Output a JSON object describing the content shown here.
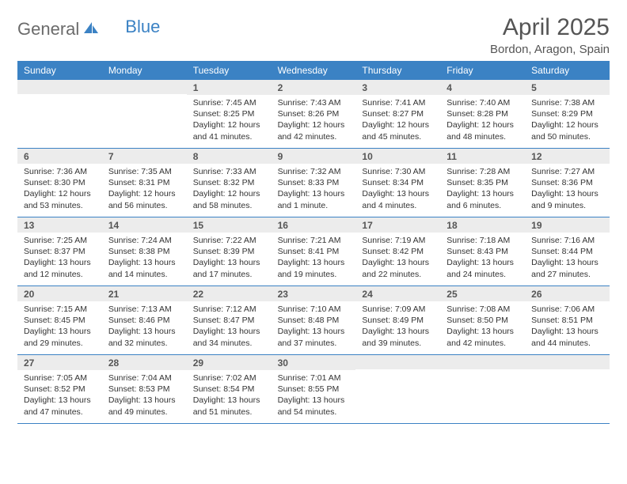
{
  "brand": {
    "part1": "General",
    "part2": "Blue"
  },
  "title": "April 2025",
  "location": "Bordon, Aragon, Spain",
  "colors": {
    "header_bg": "#3b82c4",
    "header_text": "#ffffff",
    "daynum_bg": "#ececec",
    "text": "#333333",
    "brand_gray": "#6b6b6b",
    "brand_blue": "#3b82c4",
    "page_bg": "#ffffff"
  },
  "typography": {
    "title_fontsize": 30,
    "location_fontsize": 15,
    "weekday_fontsize": 12,
    "daynum_fontsize": 12,
    "body_fontsize": 10.5
  },
  "weekdays": [
    "Sunday",
    "Monday",
    "Tuesday",
    "Wednesday",
    "Thursday",
    "Friday",
    "Saturday"
  ],
  "weeks": [
    [
      null,
      null,
      {
        "n": "1",
        "sr": "7:45 AM",
        "ss": "8:25 PM",
        "dl": "12 hours and 41 minutes."
      },
      {
        "n": "2",
        "sr": "7:43 AM",
        "ss": "8:26 PM",
        "dl": "12 hours and 42 minutes."
      },
      {
        "n": "3",
        "sr": "7:41 AM",
        "ss": "8:27 PM",
        "dl": "12 hours and 45 minutes."
      },
      {
        "n": "4",
        "sr": "7:40 AM",
        "ss": "8:28 PM",
        "dl": "12 hours and 48 minutes."
      },
      {
        "n": "5",
        "sr": "7:38 AM",
        "ss": "8:29 PM",
        "dl": "12 hours and 50 minutes."
      }
    ],
    [
      {
        "n": "6",
        "sr": "7:36 AM",
        "ss": "8:30 PM",
        "dl": "12 hours and 53 minutes."
      },
      {
        "n": "7",
        "sr": "7:35 AM",
        "ss": "8:31 PM",
        "dl": "12 hours and 56 minutes."
      },
      {
        "n": "8",
        "sr": "7:33 AM",
        "ss": "8:32 PM",
        "dl": "12 hours and 58 minutes."
      },
      {
        "n": "9",
        "sr": "7:32 AM",
        "ss": "8:33 PM",
        "dl": "13 hours and 1 minute."
      },
      {
        "n": "10",
        "sr": "7:30 AM",
        "ss": "8:34 PM",
        "dl": "13 hours and 4 minutes."
      },
      {
        "n": "11",
        "sr": "7:28 AM",
        "ss": "8:35 PM",
        "dl": "13 hours and 6 minutes."
      },
      {
        "n": "12",
        "sr": "7:27 AM",
        "ss": "8:36 PM",
        "dl": "13 hours and 9 minutes."
      }
    ],
    [
      {
        "n": "13",
        "sr": "7:25 AM",
        "ss": "8:37 PM",
        "dl": "13 hours and 12 minutes."
      },
      {
        "n": "14",
        "sr": "7:24 AM",
        "ss": "8:38 PM",
        "dl": "13 hours and 14 minutes."
      },
      {
        "n": "15",
        "sr": "7:22 AM",
        "ss": "8:39 PM",
        "dl": "13 hours and 17 minutes."
      },
      {
        "n": "16",
        "sr": "7:21 AM",
        "ss": "8:41 PM",
        "dl": "13 hours and 19 minutes."
      },
      {
        "n": "17",
        "sr": "7:19 AM",
        "ss": "8:42 PM",
        "dl": "13 hours and 22 minutes."
      },
      {
        "n": "18",
        "sr": "7:18 AM",
        "ss": "8:43 PM",
        "dl": "13 hours and 24 minutes."
      },
      {
        "n": "19",
        "sr": "7:16 AM",
        "ss": "8:44 PM",
        "dl": "13 hours and 27 minutes."
      }
    ],
    [
      {
        "n": "20",
        "sr": "7:15 AM",
        "ss": "8:45 PM",
        "dl": "13 hours and 29 minutes."
      },
      {
        "n": "21",
        "sr": "7:13 AM",
        "ss": "8:46 PM",
        "dl": "13 hours and 32 minutes."
      },
      {
        "n": "22",
        "sr": "7:12 AM",
        "ss": "8:47 PM",
        "dl": "13 hours and 34 minutes."
      },
      {
        "n": "23",
        "sr": "7:10 AM",
        "ss": "8:48 PM",
        "dl": "13 hours and 37 minutes."
      },
      {
        "n": "24",
        "sr": "7:09 AM",
        "ss": "8:49 PM",
        "dl": "13 hours and 39 minutes."
      },
      {
        "n": "25",
        "sr": "7:08 AM",
        "ss": "8:50 PM",
        "dl": "13 hours and 42 minutes."
      },
      {
        "n": "26",
        "sr": "7:06 AM",
        "ss": "8:51 PM",
        "dl": "13 hours and 44 minutes."
      }
    ],
    [
      {
        "n": "27",
        "sr": "7:05 AM",
        "ss": "8:52 PM",
        "dl": "13 hours and 47 minutes."
      },
      {
        "n": "28",
        "sr": "7:04 AM",
        "ss": "8:53 PM",
        "dl": "13 hours and 49 minutes."
      },
      {
        "n": "29",
        "sr": "7:02 AM",
        "ss": "8:54 PM",
        "dl": "13 hours and 51 minutes."
      },
      {
        "n": "30",
        "sr": "7:01 AM",
        "ss": "8:55 PM",
        "dl": "13 hours and 54 minutes."
      },
      null,
      null,
      null
    ]
  ],
  "labels": {
    "sunrise": "Sunrise: ",
    "sunset": "Sunset: ",
    "daylight": "Daylight: "
  }
}
